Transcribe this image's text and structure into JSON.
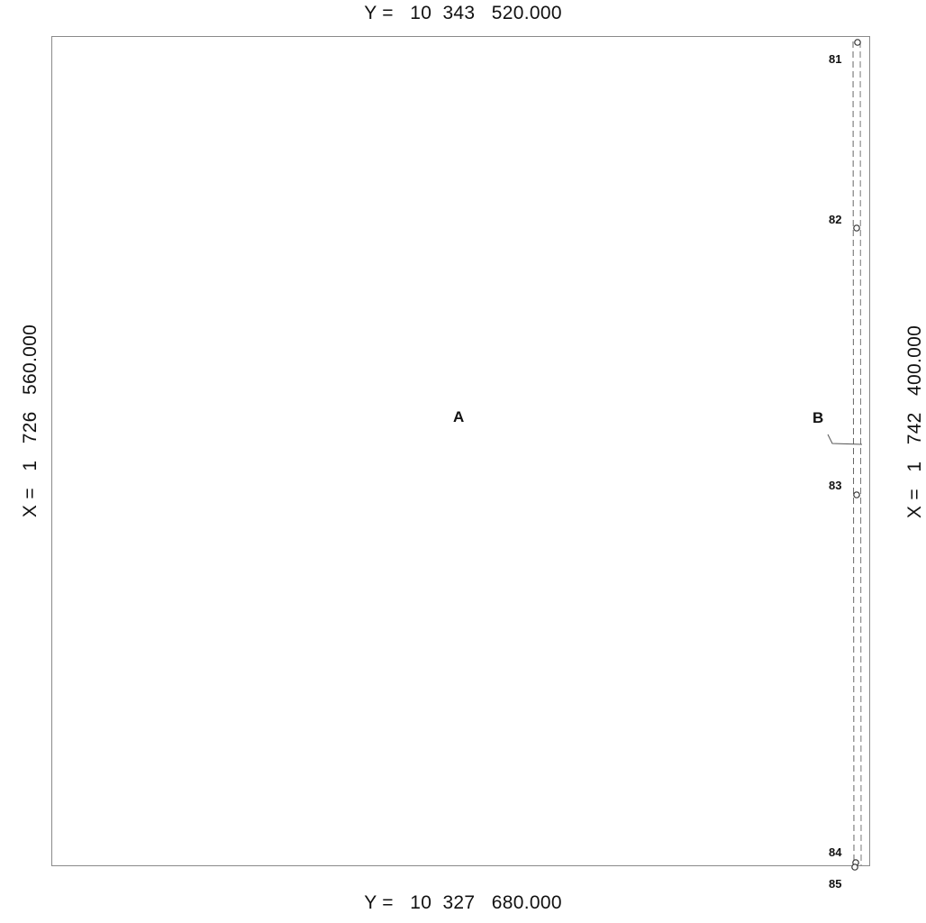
{
  "coords": {
    "y_top": "Y =   10  343   520.000",
    "y_bottom": "Y =   10  327   680.000",
    "x_left": "X =   1   726   560.000",
    "x_right": "X =   1   742   400.000"
  },
  "parcels": {
    "a": "A",
    "b": "B"
  },
  "points": [
    "81",
    "82",
    "83",
    "84",
    "85"
  ]
}
